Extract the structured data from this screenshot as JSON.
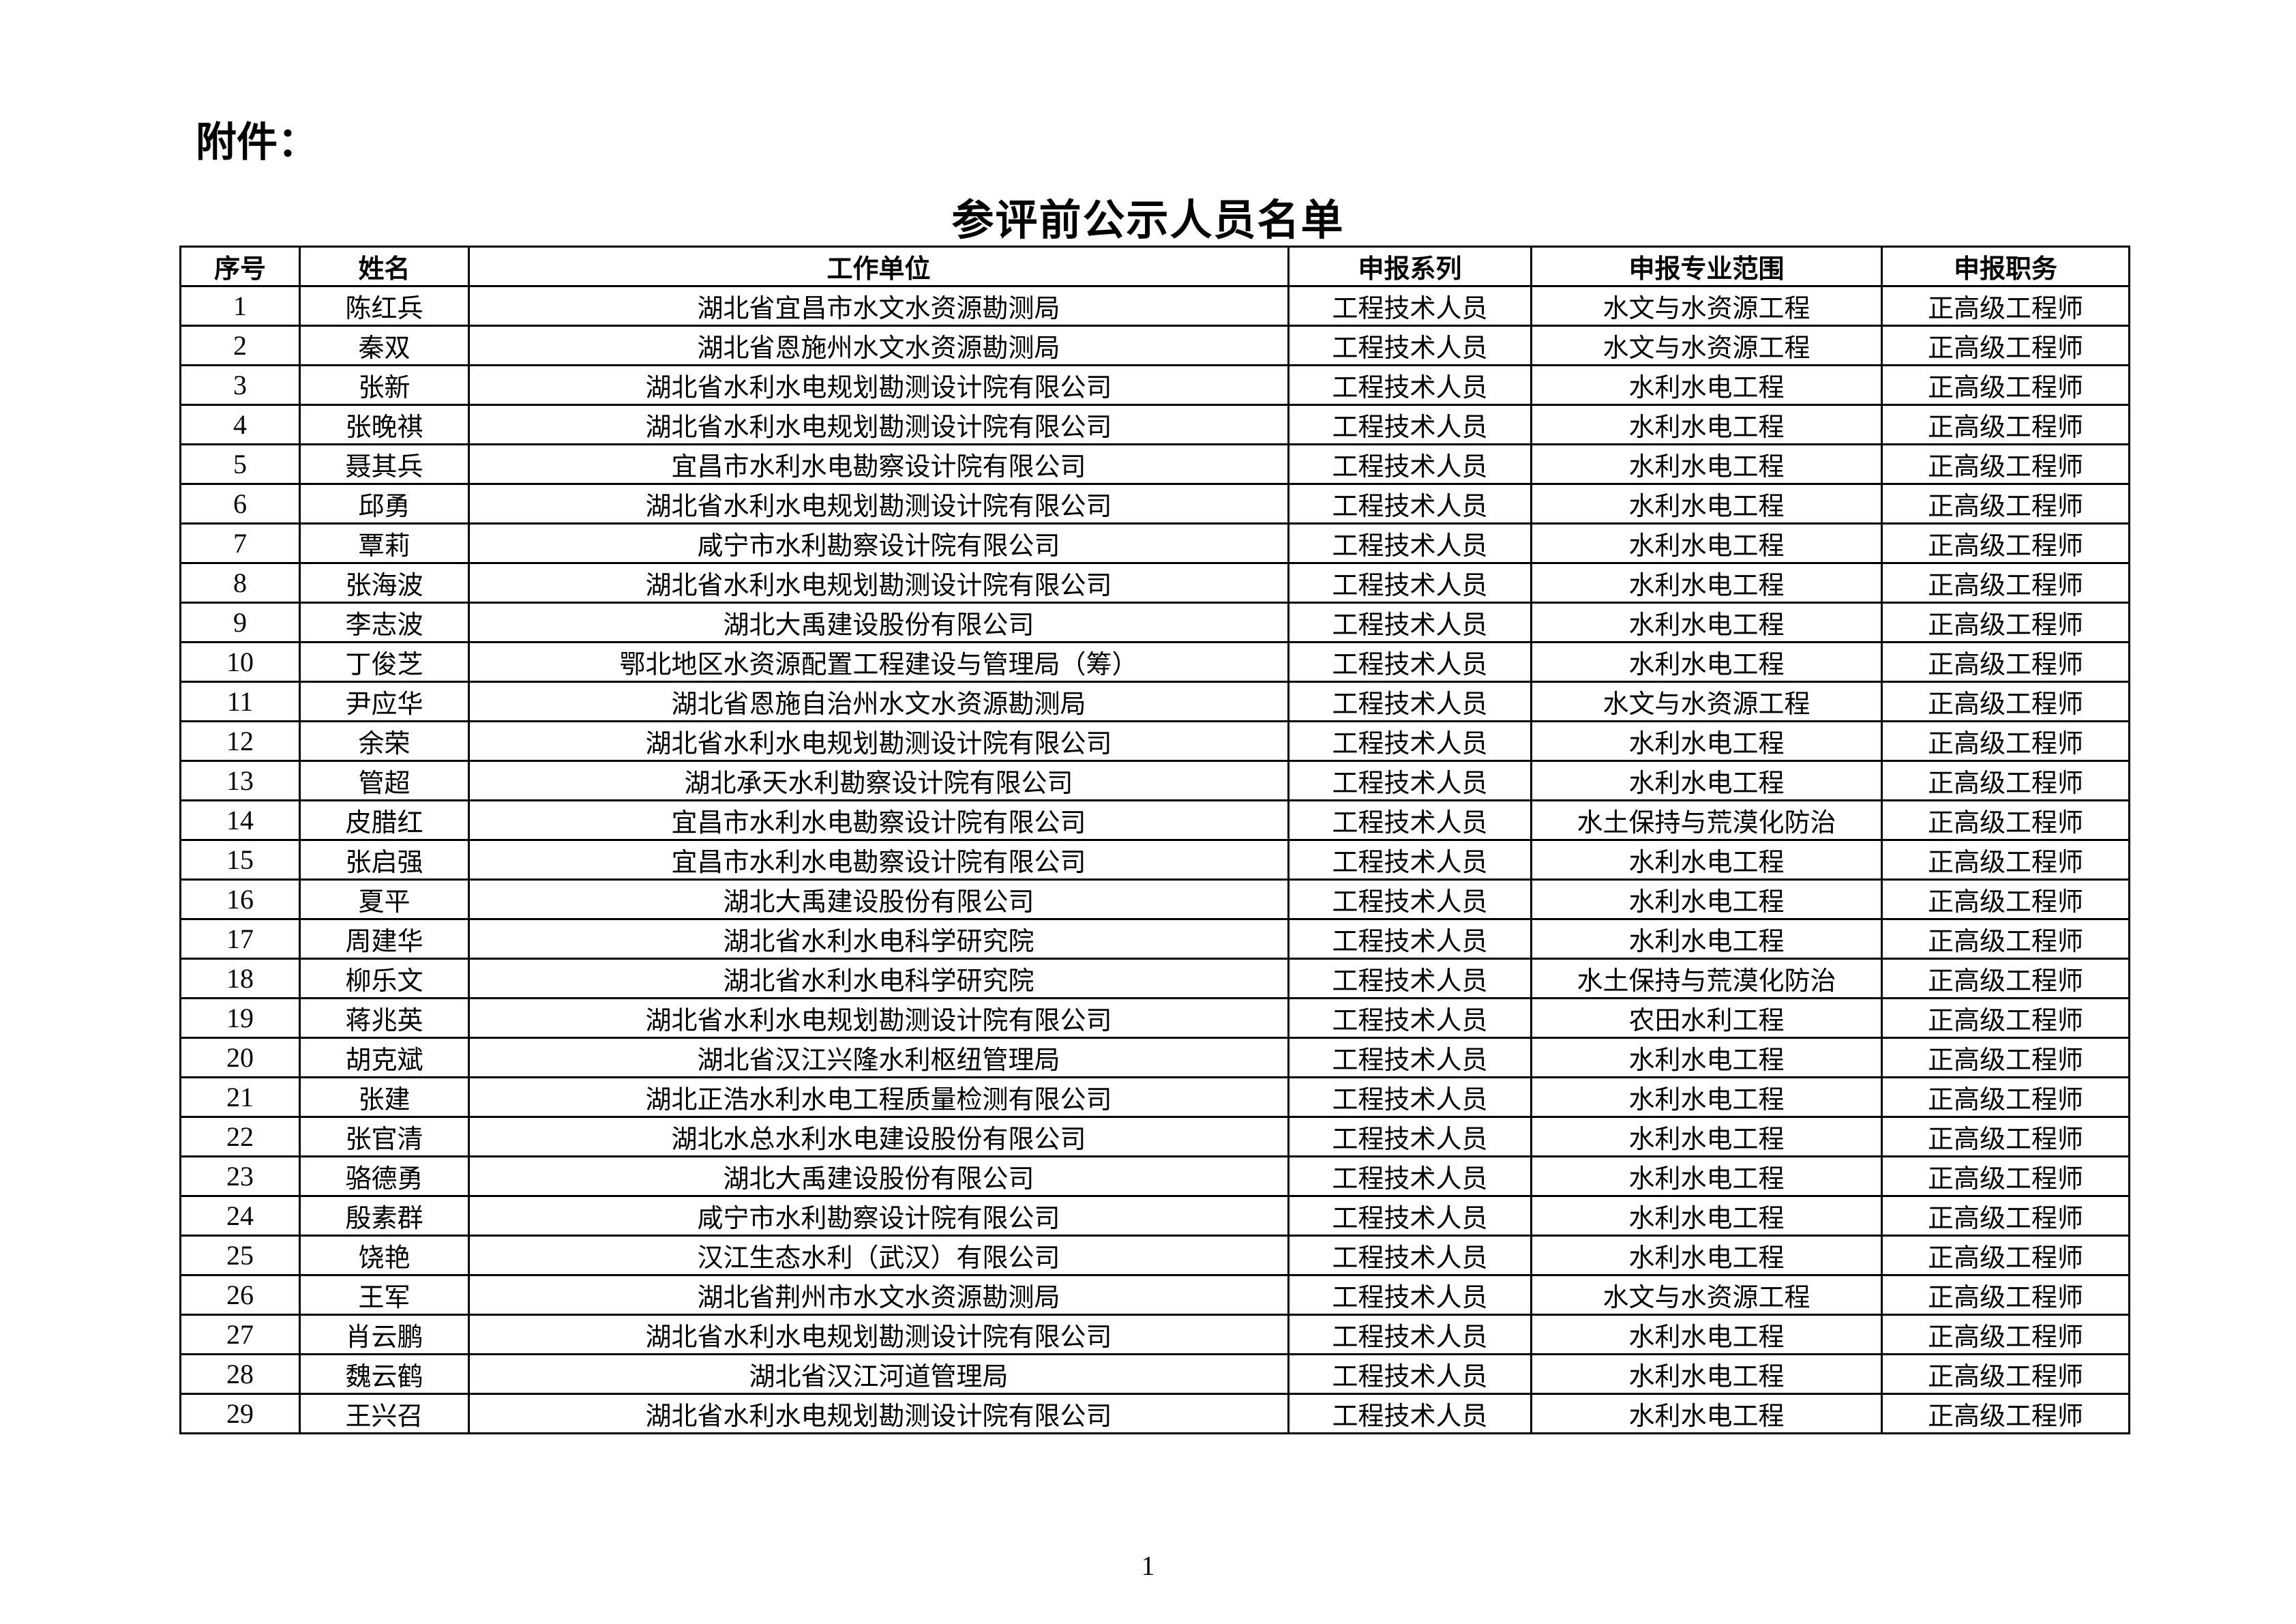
{
  "attachment_label": "附件：",
  "title": "参评前公示人员名单",
  "table": {
    "headers": [
      "序号",
      "姓名",
      "工作单位",
      "申报系列",
      "申报专业范围",
      "申报职务"
    ],
    "rows": [
      [
        "1",
        "陈红兵",
        "湖北省宜昌市水文水资源勘测局",
        "工程技术人员",
        "水文与水资源工程",
        "正高级工程师"
      ],
      [
        "2",
        "秦双",
        "湖北省恩施州水文水资源勘测局",
        "工程技术人员",
        "水文与水资源工程",
        "正高级工程师"
      ],
      [
        "3",
        "张新",
        "湖北省水利水电规划勘测设计院有限公司",
        "工程技术人员",
        "水利水电工程",
        "正高级工程师"
      ],
      [
        "4",
        "张晚祺",
        "湖北省水利水电规划勘测设计院有限公司",
        "工程技术人员",
        "水利水电工程",
        "正高级工程师"
      ],
      [
        "5",
        "聂其兵",
        "宜昌市水利水电勘察设计院有限公司",
        "工程技术人员",
        "水利水电工程",
        "正高级工程师"
      ],
      [
        "6",
        "邱勇",
        "湖北省水利水电规划勘测设计院有限公司",
        "工程技术人员",
        "水利水电工程",
        "正高级工程师"
      ],
      [
        "7",
        "覃莉",
        "咸宁市水利勘察设计院有限公司",
        "工程技术人员",
        "水利水电工程",
        "正高级工程师"
      ],
      [
        "8",
        "张海波",
        "湖北省水利水电规划勘测设计院有限公司",
        "工程技术人员",
        "水利水电工程",
        "正高级工程师"
      ],
      [
        "9",
        "李志波",
        "湖北大禹建设股份有限公司",
        "工程技术人员",
        "水利水电工程",
        "正高级工程师"
      ],
      [
        "10",
        "丁俊芝",
        "鄂北地区水资源配置工程建设与管理局（筹）",
        "工程技术人员",
        "水利水电工程",
        "正高级工程师"
      ],
      [
        "11",
        "尹应华",
        "湖北省恩施自治州水文水资源勘测局",
        "工程技术人员",
        "水文与水资源工程",
        "正高级工程师"
      ],
      [
        "12",
        "余荣",
        "湖北省水利水电规划勘测设计院有限公司",
        "工程技术人员",
        "水利水电工程",
        "正高级工程师"
      ],
      [
        "13",
        "管超",
        "湖北承天水利勘察设计院有限公司",
        "工程技术人员",
        "水利水电工程",
        "正高级工程师"
      ],
      [
        "14",
        "皮腊红",
        "宜昌市水利水电勘察设计院有限公司",
        "工程技术人员",
        "水土保持与荒漠化防治",
        "正高级工程师"
      ],
      [
        "15",
        "张启强",
        "宜昌市水利水电勘察设计院有限公司",
        "工程技术人员",
        "水利水电工程",
        "正高级工程师"
      ],
      [
        "16",
        "夏平",
        "湖北大禹建设股份有限公司",
        "工程技术人员",
        "水利水电工程",
        "正高级工程师"
      ],
      [
        "17",
        "周建华",
        "湖北省水利水电科学研究院",
        "工程技术人员",
        "水利水电工程",
        "正高级工程师"
      ],
      [
        "18",
        "柳乐文",
        "湖北省水利水电科学研究院",
        "工程技术人员",
        "水土保持与荒漠化防治",
        "正高级工程师"
      ],
      [
        "19",
        "蒋兆英",
        "湖北省水利水电规划勘测设计院有限公司",
        "工程技术人员",
        "农田水利工程",
        "正高级工程师"
      ],
      [
        "20",
        "胡克斌",
        "湖北省汉江兴隆水利枢纽管理局",
        "工程技术人员",
        "水利水电工程",
        "正高级工程师"
      ],
      [
        "21",
        "张建",
        "湖北正浩水利水电工程质量检测有限公司",
        "工程技术人员",
        "水利水电工程",
        "正高级工程师"
      ],
      [
        "22",
        "张官清",
        "湖北水总水利水电建设股份有限公司",
        "工程技术人员",
        "水利水电工程",
        "正高级工程师"
      ],
      [
        "23",
        "骆德勇",
        "湖北大禹建设股份有限公司",
        "工程技术人员",
        "水利水电工程",
        "正高级工程师"
      ],
      [
        "24",
        "殷素群",
        "咸宁市水利勘察设计院有限公司",
        "工程技术人员",
        "水利水电工程",
        "正高级工程师"
      ],
      [
        "25",
        "饶艳",
        "汉江生态水利（武汉）有限公司",
        "工程技术人员",
        "水利水电工程",
        "正高级工程师"
      ],
      [
        "26",
        "王军",
        "湖北省荆州市水文水资源勘测局",
        "工程技术人员",
        "水文与水资源工程",
        "正高级工程师"
      ],
      [
        "27",
        "肖云鹏",
        "湖北省水利水电规划勘测设计院有限公司",
        "工程技术人员",
        "水利水电工程",
        "正高级工程师"
      ],
      [
        "28",
        "魏云鹤",
        "湖北省汉江河道管理局",
        "工程技术人员",
        "水利水电工程",
        "正高级工程师"
      ],
      [
        "29",
        "王兴召",
        "湖北省水利水电规划勘测设计院有限公司",
        "工程技术人员",
        "水利水电工程",
        "正高级工程师"
      ]
    ]
  },
  "page_number": "1"
}
